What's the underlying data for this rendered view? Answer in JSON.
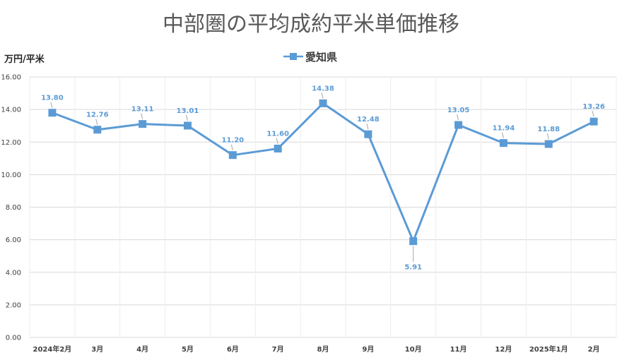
{
  "chart_data": {
    "type": "line",
    "title": "中部圏の平均成約平米単価推移",
    "ylabel": "万円/平米",
    "xlabel": "",
    "categories": [
      "2024年2月",
      "3月",
      "4月",
      "5月",
      "6月",
      "7月",
      "8月",
      "9月",
      "10月",
      "11月",
      "12月",
      "2025年1月",
      "2月"
    ],
    "series": [
      {
        "name": "愛知県",
        "values": [
          13.8,
          12.76,
          13.11,
          13.01,
          11.2,
          11.6,
          14.38,
          12.48,
          5.91,
          13.05,
          11.94,
          11.88,
          13.26
        ],
        "labels": [
          "13.80",
          "12.76",
          "13.11",
          "13.01",
          "11.20",
          "11.60",
          "14.38",
          "12.48",
          "5.91",
          "13.05",
          "11.94",
          "11.88",
          "13.26"
        ]
      }
    ],
    "ylim": [
      0,
      16
    ],
    "yticks": [
      "0.00",
      "2.00",
      "4.00",
      "6.00",
      "8.00",
      "10.00",
      "12.00",
      "14.00",
      "16.00"
    ],
    "grid": true,
    "legend_position": "top-center",
    "colors": {
      "series": "#5b9bd5",
      "grid": "#d9d9d9",
      "title": "#595959"
    }
  }
}
